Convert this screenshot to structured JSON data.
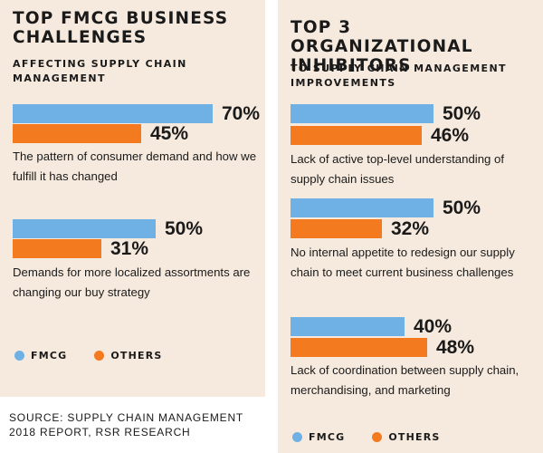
{
  "colors": {
    "fmcg": "#6fb1e4",
    "others": "#f47a20",
    "panel": "#f6eade"
  },
  "chart_data": [
    {
      "type": "bar",
      "title": "TOP FMCG BUSINESS CHALLENGES",
      "subtitle": "AFFECTING SUPPLY CHAIN MANAGEMENT",
      "xlim": [
        0,
        100
      ],
      "legend": [
        "FMCG",
        "OTHERS"
      ],
      "categories": [
        "The pattern of consumer demand and how we fulfill it has changed",
        "Demands for more localized assortments are changing our buy strategy"
      ],
      "series": [
        {
          "name": "FMCG",
          "values": [
            70,
            50
          ],
          "labels": [
            "70%",
            "50%"
          ]
        },
        {
          "name": "OTHERS",
          "values": [
            45,
            31
          ],
          "labels": [
            "45%",
            "31%"
          ]
        }
      ]
    },
    {
      "type": "bar",
      "title": "TOP 3 ORGANIZATIONAL INHIBITORS",
      "subtitle": "TO SUPPLY CHAIN MANAGEMENT IMPROVEMENTS",
      "xlim": [
        0,
        100
      ],
      "legend": [
        "FMCG",
        "OTHERS"
      ],
      "categories": [
        "Lack of active top-level understanding of supply chain issues",
        "No internal appetite to redesign our supply chain to meet current business challenges",
        "Lack of coordination between supply chain, merchandising, and marketing"
      ],
      "series": [
        {
          "name": "FMCG",
          "values": [
            50,
            50,
            40
          ],
          "labels": [
            "50%",
            "50%",
            "40%"
          ]
        },
        {
          "name": "OTHERS",
          "values": [
            46,
            32,
            48
          ],
          "labels": [
            "46%",
            "32%",
            "48%"
          ]
        }
      ]
    }
  ],
  "source": "SOURCE: SUPPLY CHAIN MANAGEMENT 2018 REPORT, RSR RESEARCH"
}
